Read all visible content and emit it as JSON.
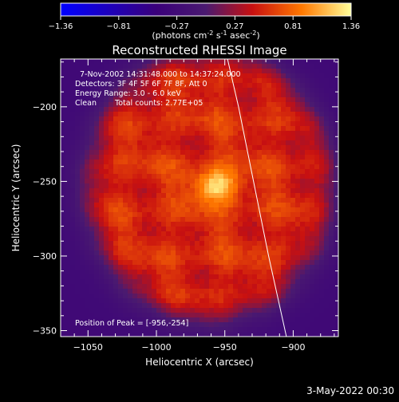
{
  "chart_data": {
    "type": "heatmap",
    "title": "Reconstructed RHESSI Image",
    "xlabel": "Heliocentric X (arcsec)",
    "ylabel": "Heliocentric Y (arcsec)",
    "xlim": [
      -1070,
      -867
    ],
    "ylim": [
      -354,
      -168
    ],
    "x_ticks": [
      -1050,
      -1000,
      -950,
      -900
    ],
    "y_ticks": [
      -200,
      -250,
      -300,
      -350
    ],
    "colorbar": {
      "range": [
        -1.36,
        1.36
      ],
      "ticks": [
        "-1.36",
        "-0.81",
        "-0.27",
        "0.27",
        "0.81",
        "1.36"
      ],
      "label_main": "(photons cm",
      "exp1": "-2",
      "mid1": " s",
      "exp2": "-1",
      "mid2": " asec",
      "exp3": "-2",
      "label_end": ")"
    },
    "annotations": {
      "time_range": "7-Nov-2002 14:31:48.000 to 14:37:24.000",
      "detectors": "Detectors: 3F 4F 5F 6F 7F 8F, Att 0",
      "energy": "Energy Range: 3.0 - 6.0 keV",
      "clean": "Clean",
      "total_counts": "Total counts: 2.77E+05",
      "peak": "Position of Peak = [-956,-254]"
    },
    "peak_position": [
      -956,
      -254
    ],
    "source": {
      "center_x": -962,
      "center_y": -253,
      "peak_value": 1.36,
      "background_disk_radius": 90,
      "background_value": 0.55
    },
    "limb_curve": [
      [
        -948,
        -168
      ],
      [
        -940,
        -200
      ],
      [
        -929,
        -250
      ],
      [
        -918,
        -300
      ],
      [
        -905,
        -354
      ]
    ]
  },
  "footer": {
    "date": "3-May-2022 00:30"
  }
}
